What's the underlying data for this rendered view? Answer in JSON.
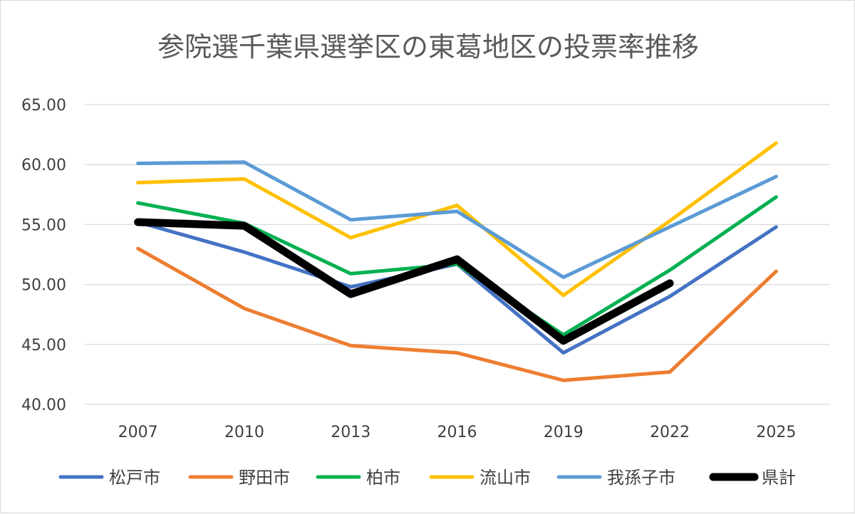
{
  "chart_data": {
    "type": "line",
    "title": "参院選千葉県選挙区の東葛地区の投票率推移",
    "xlabel": "",
    "ylabel": "",
    "categories": [
      "2007",
      "2010",
      "2013",
      "2016",
      "2019",
      "2022",
      "2025"
    ],
    "ylim": [
      40,
      65
    ],
    "yticks": [
      "40.00",
      "45.00",
      "50.00",
      "55.00",
      "60.00",
      "65.00"
    ],
    "grid": true,
    "legend_position": "bottom",
    "series": [
      {
        "name": "松戸市",
        "color": "#4472c4",
        "values": [
          55.2,
          52.7,
          49.8,
          51.7,
          44.3,
          49.0,
          54.8
        ]
      },
      {
        "name": "野田市",
        "color": "#ed7d31",
        "values": [
          53.0,
          48.0,
          44.9,
          44.3,
          42.0,
          42.7,
          51.1
        ]
      },
      {
        "name": "柏市",
        "color": "#00b050",
        "values": [
          56.8,
          55.1,
          50.9,
          51.7,
          45.8,
          51.2,
          57.3
        ]
      },
      {
        "name": "流山市",
        "color": "#ffc000",
        "values": [
          58.5,
          58.8,
          53.9,
          56.6,
          49.1,
          55.3,
          61.8
        ]
      },
      {
        "name": "我孫子市",
        "color": "#5b9bd5",
        "values": [
          60.1,
          60.2,
          55.4,
          56.1,
          50.6,
          54.8,
          59.0
        ]
      },
      {
        "name": "県計",
        "color": "#000000",
        "bold": true,
        "values": [
          55.2,
          54.9,
          49.2,
          52.1,
          45.3,
          50.1,
          null
        ]
      }
    ]
  }
}
